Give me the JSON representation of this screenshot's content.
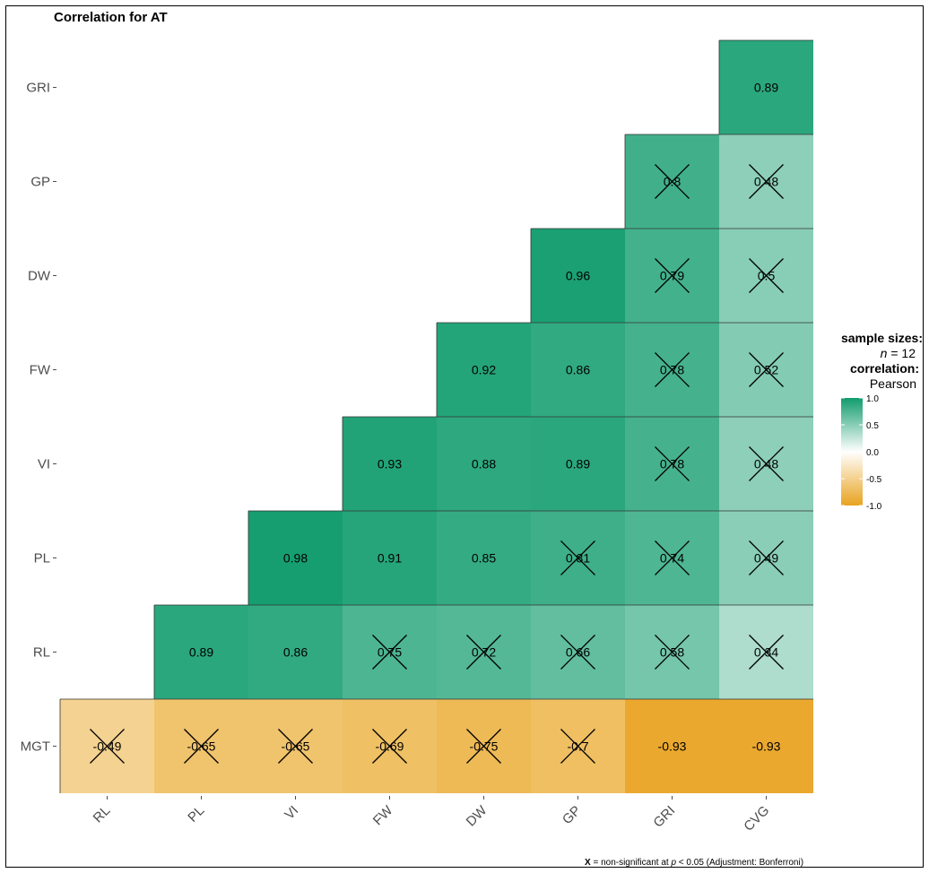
{
  "chart_data": {
    "type": "heatmap",
    "title": "Correlation for AT",
    "x_categories": [
      "RL",
      "PL",
      "VI",
      "FW",
      "DW",
      "GP",
      "GRI",
      "CVG"
    ],
    "y_categories": [
      "GRI",
      "GP",
      "DW",
      "FW",
      "VI",
      "PL",
      "RL",
      "MGT"
    ],
    "values": [
      [
        null,
        null,
        null,
        null,
        null,
        null,
        null,
        0.89
      ],
      [
        null,
        null,
        null,
        null,
        null,
        null,
        0.8,
        0.48
      ],
      [
        null,
        null,
        null,
        null,
        null,
        0.96,
        0.79,
        0.5
      ],
      [
        null,
        null,
        null,
        null,
        0.92,
        0.86,
        0.78,
        0.52
      ],
      [
        null,
        null,
        null,
        0.93,
        0.88,
        0.89,
        0.78,
        0.48
      ],
      [
        null,
        null,
        0.98,
        0.91,
        0.85,
        0.81,
        0.74,
        0.49
      ],
      [
        null,
        0.89,
        0.86,
        0.75,
        0.72,
        0.66,
        0.58,
        0.34
      ],
      [
        -0.49,
        -0.65,
        -0.65,
        -0.69,
        -0.75,
        -0.7,
        -0.93,
        -0.93
      ]
    ],
    "labels": [
      [
        null,
        null,
        null,
        null,
        null,
        null,
        null,
        "0.89"
      ],
      [
        null,
        null,
        null,
        null,
        null,
        null,
        "0.8",
        "0.48"
      ],
      [
        null,
        null,
        null,
        null,
        null,
        "0.96",
        "0.79",
        "0.5"
      ],
      [
        null,
        null,
        null,
        null,
        "0.92",
        "0.86",
        "0.78",
        "0.52"
      ],
      [
        null,
        null,
        null,
        "0.93",
        "0.88",
        "0.89",
        "0.78",
        "0.48"
      ],
      [
        null,
        null,
        "0.98",
        "0.91",
        "0.85",
        "0.81",
        "0.74",
        "0.49"
      ],
      [
        null,
        "0.89",
        "0.86",
        "0.75",
        "0.72",
        "0.66",
        "0.58",
        "0.34"
      ],
      [
        "-0.49",
        "-0.65",
        "-0.65",
        "-0.69",
        "-0.75",
        "-0.7",
        "-0.93",
        "-0.93"
      ]
    ],
    "non_significant": [
      [
        false,
        false,
        false,
        false,
        false,
        false,
        false,
        false
      ],
      [
        false,
        false,
        false,
        false,
        false,
        false,
        true,
        true
      ],
      [
        false,
        false,
        false,
        false,
        false,
        false,
        true,
        true
      ],
      [
        false,
        false,
        false,
        false,
        false,
        false,
        true,
        true
      ],
      [
        false,
        false,
        false,
        false,
        false,
        false,
        true,
        true
      ],
      [
        false,
        false,
        false,
        false,
        false,
        true,
        true,
        true
      ],
      [
        false,
        false,
        false,
        true,
        true,
        true,
        true,
        true
      ],
      [
        true,
        true,
        true,
        true,
        true,
        true,
        false,
        false
      ]
    ],
    "color_scale": {
      "low": "#e8a31e",
      "mid": "#ffffff",
      "high": "#119c6d",
      "limits": [
        -1.0,
        1.0
      ]
    },
    "legend": {
      "position": "right",
      "heading_1": "sample sizes:",
      "n_label": "n",
      "n_value": "= 12",
      "heading_2": "correlation:",
      "method": "Pearson",
      "ticks": [
        "1.0",
        "0.5",
        "0.0",
        "-0.5",
        "-1.0"
      ],
      "tick_values": [
        1.0,
        0.5,
        0.0,
        -0.5,
        -1.0
      ]
    },
    "caption": {
      "marker": "X",
      "text_before_p": "= non-significant at",
      "p": "p",
      "text_after_p": "< 0.05 (Adjustment: Bonferroni)"
    }
  }
}
